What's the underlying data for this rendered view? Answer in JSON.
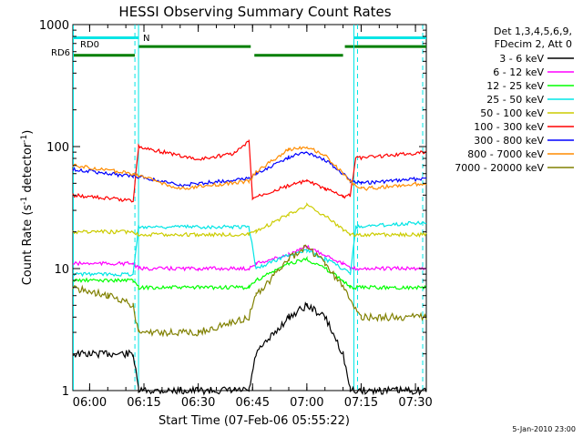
{
  "chart_data": {
    "type": "line",
    "title": "HESSI Observing Summary Count Rates",
    "xlabel": "Start Time (07-Feb-06 05:55:22)",
    "ylabel_main": "Count Rate (s",
    "ylabel_sup1": "-1",
    "ylabel_mid": " detector",
    "ylabel_sup2": "-1",
    "ylabel_end": ")",
    "yscale": "log",
    "ylim": [
      1,
      1000
    ],
    "xlim": [
      "05:55:22",
      "07:33:00"
    ],
    "xticks": [
      "06:00",
      "06:15",
      "06:30",
      "06:45",
      "07:00",
      "07:15",
      "07:30"
    ],
    "yticks": [
      "1",
      "10",
      "100",
      "1000"
    ],
    "legend_header": [
      "Det 1,3,4,5,6,9,",
      "FDecim 2, Att 0"
    ],
    "legend_position": "right",
    "footer_date": "5-Jan-2010 23:00",
    "flag_labels": {
      "rd0": "RD0",
      "rd6": "RD6",
      "n": "N"
    },
    "flag_colors": {
      "rd0": "#00e5e5",
      "rd6": "#007f00",
      "n": "#00e5e5"
    },
    "flags": {
      "rd0": [
        [
          "05:55:22",
          "06:12:30"
        ],
        [
          "07:13:00",
          "07:33:00"
        ]
      ],
      "rd6": [
        [
          "05:55:22",
          "06:12:30"
        ],
        [
          "06:13:30",
          "06:44:30"
        ],
        [
          "06:45:30",
          "07:10:00"
        ],
        [
          "07:10:30",
          "07:33:00"
        ]
      ],
      "n": [
        [
          "06:12:30",
          "06:13:30"
        ]
      ]
    },
    "flag_y": {
      "rd0": 780,
      "rd6": 560,
      "rd6_top": 660
    },
    "vlines_solid": [
      "05:55:30",
      "06:13:30",
      "07:13:00"
    ],
    "vlines_dashed": [
      "06:12:30",
      "07:14:00",
      "07:32:00"
    ],
    "series": [
      {
        "name": "3 - 6 keV",
        "color": "#000000",
        "points": [
          [
            "05:55:22",
            2.0
          ],
          [
            "06:05:00",
            2.0
          ],
          [
            "06:12:00",
            2.0
          ],
          [
            "06:13:30",
            1.0
          ],
          [
            "06:44:00",
            1.0
          ],
          [
            "06:46:00",
            2.0
          ],
          [
            "06:55:00",
            4.0
          ],
          [
            "07:00:00",
            5.0
          ],
          [
            "07:05:00",
            4.0
          ],
          [
            "07:10:00",
            2.0
          ],
          [
            "07:12:00",
            1.0
          ],
          [
            "07:33:00",
            1.0
          ]
        ]
      },
      {
        "name": "6 - 12 keV",
        "color": "#ff00ff",
        "points": [
          [
            "05:55:22",
            11
          ],
          [
            "06:12:00",
            11
          ],
          [
            "06:13:30",
            10
          ],
          [
            "06:30:00",
            10
          ],
          [
            "06:44:00",
            10
          ],
          [
            "06:46:00",
            11
          ],
          [
            "06:55:00",
            13
          ],
          [
            "07:00:00",
            15
          ],
          [
            "07:05:00",
            13
          ],
          [
            "07:10:00",
            11
          ],
          [
            "07:12:00",
            10
          ],
          [
            "07:33:00",
            10
          ]
        ]
      },
      {
        "name": "12 - 25 keV",
        "color": "#00ff00",
        "points": [
          [
            "05:55:22",
            8
          ],
          [
            "06:12:00",
            8
          ],
          [
            "06:13:30",
            7
          ],
          [
            "06:44:00",
            7
          ],
          [
            "06:46:00",
            8
          ],
          [
            "06:55:00",
            11
          ],
          [
            "07:00:00",
            12
          ],
          [
            "07:05:00",
            10
          ],
          [
            "07:10:00",
            8
          ],
          [
            "07:12:00",
            7
          ],
          [
            "07:33:00",
            7
          ]
        ]
      },
      {
        "name": "25 - 50 keV",
        "color": "#00e5e5",
        "points": [
          [
            "05:55:22",
            9
          ],
          [
            "06:12:00",
            9
          ],
          [
            "06:13:30",
            22
          ],
          [
            "06:44:00",
            22
          ],
          [
            "06:46:00",
            10
          ],
          [
            "06:55:00",
            13
          ],
          [
            "07:00:00",
            14
          ],
          [
            "07:05:00",
            12
          ],
          [
            "07:10:00",
            10
          ],
          [
            "07:12:00",
            9
          ],
          [
            "07:13:30",
            22
          ],
          [
            "07:33:00",
            24
          ]
        ]
      },
      {
        "name": "50 - 100 keV",
        "color": "#cccc00",
        "points": [
          [
            "05:55:22",
            20
          ],
          [
            "06:12:00",
            20
          ],
          [
            "06:13:30",
            19
          ],
          [
            "06:44:00",
            19
          ],
          [
            "06:46:00",
            20
          ],
          [
            "06:55:00",
            28
          ],
          [
            "07:00:00",
            33
          ],
          [
            "07:05:00",
            27
          ],
          [
            "07:10:00",
            21
          ],
          [
            "07:12:00",
            19
          ],
          [
            "07:33:00",
            19
          ]
        ]
      },
      {
        "name": "100 - 300 keV",
        "color": "#ff0000",
        "points": [
          [
            "05:55:22",
            40
          ],
          [
            "06:12:00",
            36
          ],
          [
            "06:13:30",
            100
          ],
          [
            "06:30:00",
            78
          ],
          [
            "06:40:00",
            88
          ],
          [
            "06:44:00",
            110
          ],
          [
            "06:45:00",
            38
          ],
          [
            "06:55:00",
            48
          ],
          [
            "07:00:00",
            52
          ],
          [
            "07:05:00",
            45
          ],
          [
            "07:10:00",
            39
          ],
          [
            "07:12:00",
            40
          ],
          [
            "07:13:30",
            80
          ],
          [
            "07:33:00",
            90
          ]
        ]
      },
      {
        "name": "300 - 800 keV",
        "color": "#0000ff",
        "points": [
          [
            "05:55:22",
            65
          ],
          [
            "06:12:00",
            57
          ],
          [
            "06:13:30",
            57
          ],
          [
            "06:25:00",
            48
          ],
          [
            "06:44:00",
            55
          ],
          [
            "06:46:00",
            60
          ],
          [
            "06:55:00",
            82
          ],
          [
            "07:00:00",
            90
          ],
          [
            "07:05:00",
            78
          ],
          [
            "07:10:00",
            60
          ],
          [
            "07:12:00",
            52
          ],
          [
            "07:15:00",
            50
          ],
          [
            "07:33:00",
            55
          ]
        ]
      },
      {
        "name": "800 - 7000 keV",
        "color": "#ff8c00",
        "points": [
          [
            "05:55:22",
            70
          ],
          [
            "06:12:00",
            60
          ],
          [
            "06:13:30",
            58
          ],
          [
            "06:25:00",
            45
          ],
          [
            "06:44:00",
            52
          ],
          [
            "06:46:00",
            62
          ],
          [
            "06:55:00",
            95
          ],
          [
            "07:00:00",
            100
          ],
          [
            "07:05:00",
            85
          ],
          [
            "07:10:00",
            60
          ],
          [
            "07:12:00",
            52
          ],
          [
            "07:15:00",
            45
          ],
          [
            "07:33:00",
            50
          ]
        ]
      },
      {
        "name": "7000 - 20000 keV",
        "color": "#808000",
        "points": [
          [
            "05:55:22",
            7
          ],
          [
            "06:05:00",
            6
          ],
          [
            "06:12:00",
            5
          ],
          [
            "06:13:30",
            3
          ],
          [
            "06:30:00",
            3
          ],
          [
            "06:44:00",
            4
          ],
          [
            "06:46:00",
            6
          ],
          [
            "06:55:00",
            12
          ],
          [
            "07:00:00",
            15
          ],
          [
            "07:05:00",
            11
          ],
          [
            "07:10:00",
            7
          ],
          [
            "07:15:00",
            4
          ],
          [
            "07:33:00",
            4
          ]
        ]
      }
    ]
  }
}
